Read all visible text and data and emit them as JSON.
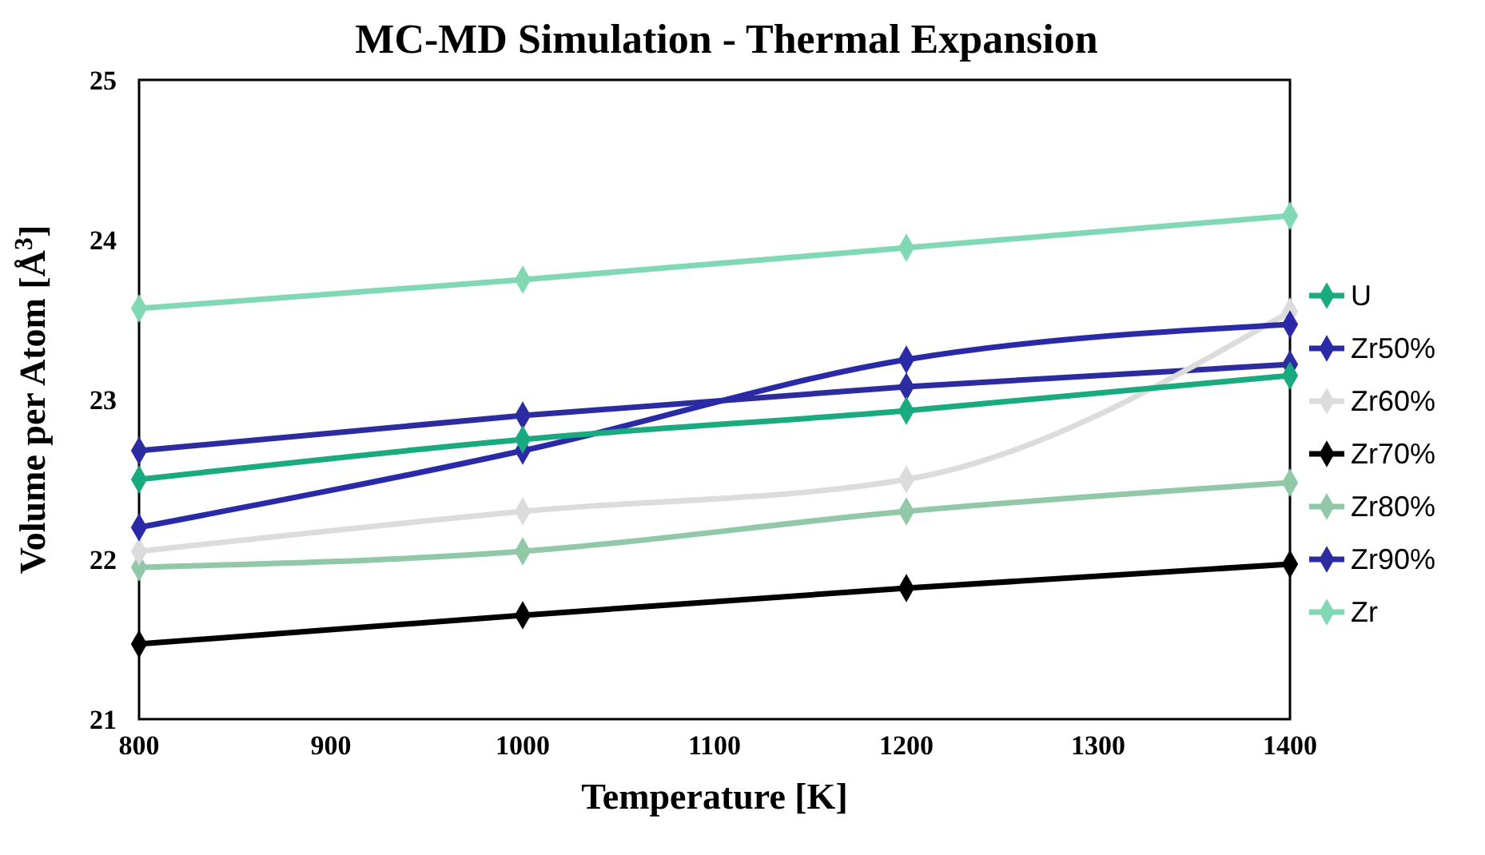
{
  "chart_data": {
    "type": "line",
    "title": "MC-MD Simulation - Thermal Expansion",
    "xlabel": "Temperature [K]",
    "ylabel": "Volume per Atom [Å$^{3}$]",
    "x": [
      800,
      1000,
      1200,
      1400
    ],
    "xlim": [
      800,
      1400
    ],
    "xticks": [
      800,
      900,
      1000,
      1100,
      1200,
      1300,
      1400
    ],
    "ylim": [
      21,
      25
    ],
    "yticks": [
      21,
      22,
      23,
      24,
      25
    ],
    "grid": false,
    "legend": "right",
    "marker": "diamond",
    "line_style": "solid",
    "series": [
      {
        "name": "U",
        "color": "#1aaa80",
        "values": [
          22.5,
          22.75,
          22.93,
          23.15
        ]
      },
      {
        "name": "Zr50%",
        "color": "#2a2aa8",
        "values": [
          22.2,
          22.68,
          23.25,
          23.47
        ]
      },
      {
        "name": "Zr60%",
        "color": "#dcdcdc",
        "values": [
          22.05,
          22.3,
          22.5,
          23.55
        ]
      },
      {
        "name": "Zr70%",
        "color": "#000000",
        "values": [
          21.47,
          21.65,
          21.82,
          21.97
        ]
      },
      {
        "name": "Zr80%",
        "color": "#90c8a8",
        "values": [
          21.95,
          22.05,
          22.3,
          22.48
        ]
      },
      {
        "name": "Zr90%",
        "color": "#2c2ca0",
        "values": [
          22.68,
          22.9,
          23.08,
          23.22
        ]
      },
      {
        "name": "Zr",
        "color": "#80d8b4",
        "values": [
          23.57,
          23.75,
          23.95,
          24.15
        ]
      }
    ]
  }
}
